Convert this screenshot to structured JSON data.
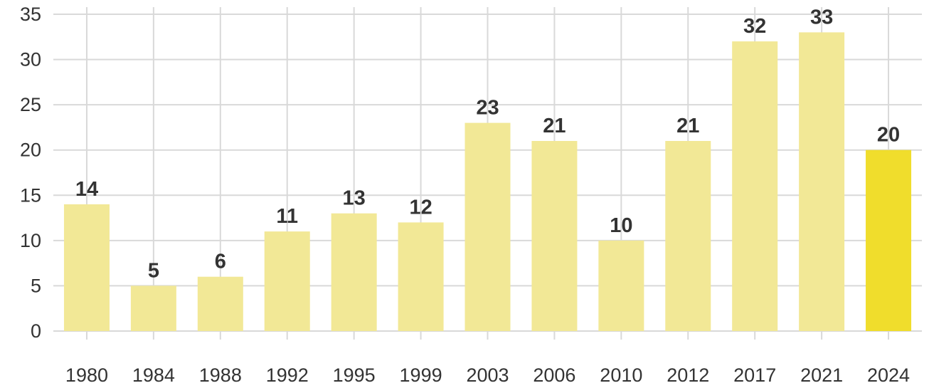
{
  "chart_data": {
    "type": "bar",
    "title": "",
    "xlabel": "",
    "ylabel": "",
    "categories": [
      "1980",
      "1984",
      "1988",
      "1992",
      "1995",
      "1999",
      "2003",
      "2006",
      "2010",
      "2012",
      "2017",
      "2021",
      "2024"
    ],
    "values": [
      14,
      5,
      6,
      11,
      13,
      12,
      23,
      21,
      10,
      21,
      32,
      33,
      20
    ],
    "ylim": [
      0,
      35
    ],
    "yticks": [
      "0",
      "5",
      "10",
      "15",
      "20",
      "25",
      "30",
      "35"
    ],
    "value_labels": [
      "14",
      "5",
      "6",
      "11",
      "13",
      "12",
      "23",
      "21",
      "10",
      "21",
      "32",
      "33",
      "20"
    ],
    "grid": true,
    "colors": {
      "bar": "#f2e896",
      "highlight_bar": "#f0dd2c",
      "grid": "#d9d9d9",
      "text": "#333333"
    },
    "highlight_category": "2024"
  }
}
